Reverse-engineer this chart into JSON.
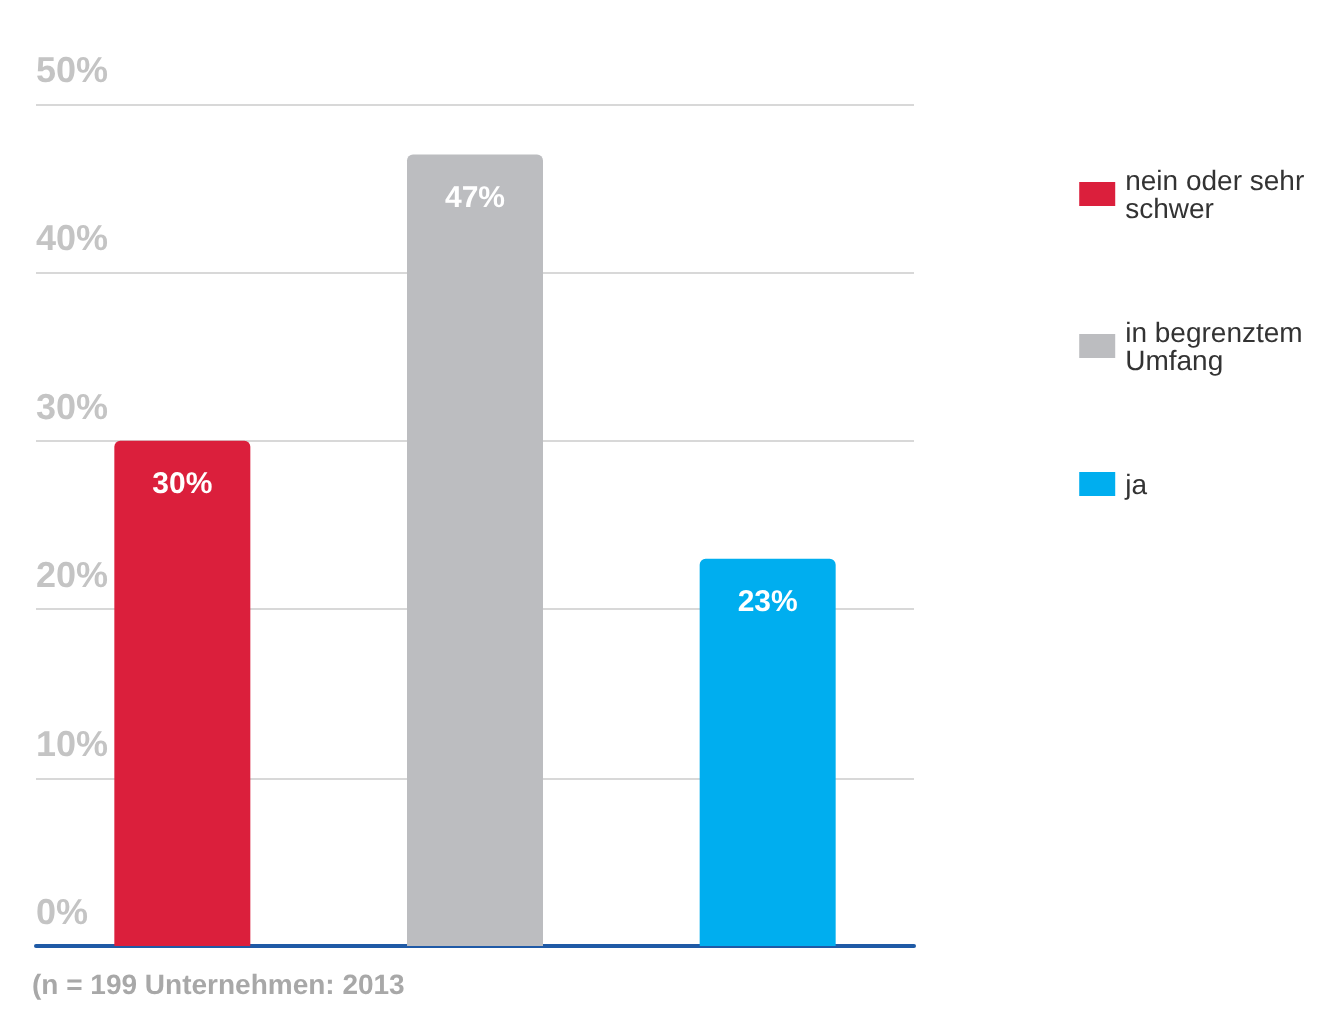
{
  "chart_data": {
    "type": "bar",
    "categories": [
      null,
      null,
      null
    ],
    "series": [
      {
        "name": "nein oder sehr schwer",
        "color": "#db1f3c",
        "values": [
          30,
          null,
          null
        ],
        "value_labels": [
          "30%",
          null,
          null
        ]
      },
      {
        "name": "in begrenztem Umfang",
        "color": "#bcbdc0",
        "values": [
          null,
          47,
          null
        ],
        "value_labels": [
          null,
          "47%",
          null
        ]
      },
      {
        "name": "ja",
        "color": "#00aeef",
        "values": [
          null,
          null,
          23
        ],
        "value_labels": [
          null,
          null,
          "23%"
        ]
      }
    ],
    "ylim": [
      0,
      50
    ],
    "yticks": [
      {
        "value": 0,
        "label": "0%"
      },
      {
        "value": 10,
        "label": "10%"
      },
      {
        "value": 20,
        "label": "20%"
      },
      {
        "value": 30,
        "label": "30%"
      },
      {
        "value": 40,
        "label": "40%"
      },
      {
        "value": 50,
        "label": "50%"
      }
    ],
    "grid": "y",
    "legend": "right",
    "annotations": [
      "(n = 199 Unternehmen: 2013"
    ]
  }
}
